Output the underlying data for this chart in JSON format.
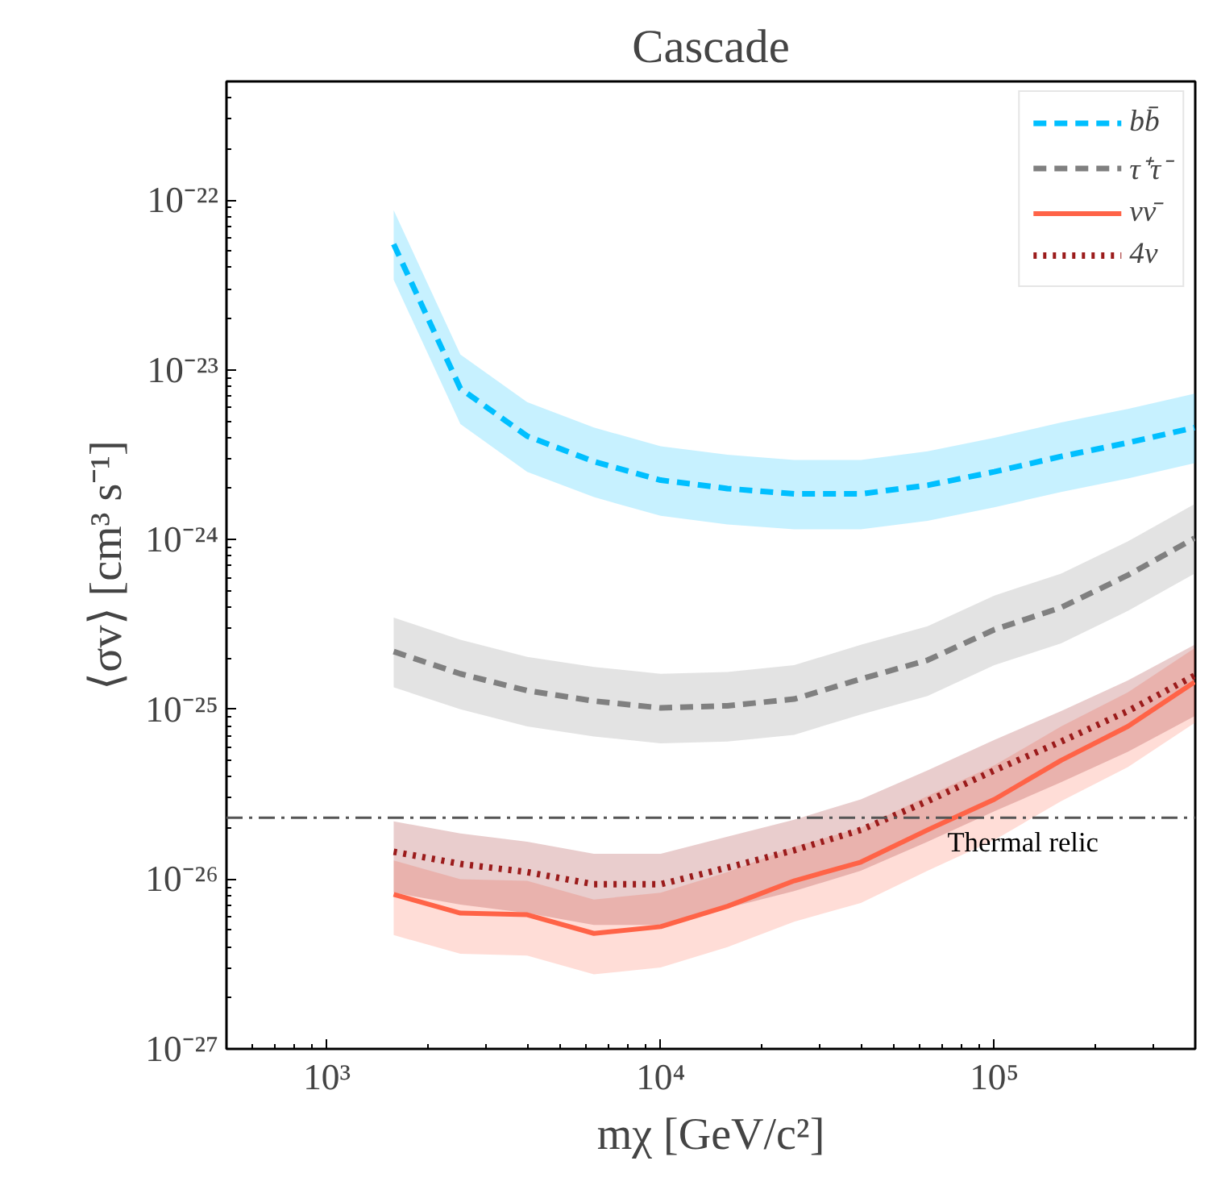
{
  "chart_data": {
    "type": "line",
    "title": "Cascade",
    "xlabel": "mχ [GeV/c²]",
    "ylabel": "⟨σv⟩ [cm³ s⁻¹]",
    "log": "xy",
    "grid": false,
    "legend": "top right",
    "xlim": [
      500,
      400000
    ],
    "ylim": [
      1e-27,
      5e-22
    ],
    "xticks": [
      {
        "value": 1000,
        "label": "10³"
      },
      {
        "value": 10000,
        "label": "10⁴"
      },
      {
        "value": 100000,
        "label": "10⁵"
      }
    ],
    "yticks": [
      {
        "value": 1e-27,
        "label": "10⁻²⁷"
      },
      {
        "value": 1e-26,
        "label": "10⁻²⁶"
      },
      {
        "value": 1e-25,
        "label": "10⁻²⁵"
      },
      {
        "value": 1e-24,
        "label": "10⁻²⁴"
      },
      {
        "value": 1e-23,
        "label": "10⁻²³"
      },
      {
        "value": 1e-22,
        "label": "10⁻²²"
      }
    ],
    "x": [
      1585,
      2512,
      3981,
      6310,
      10000,
      15850,
      25120,
      39810,
      63100,
      100000,
      158500,
      251200,
      398100
    ],
    "series": [
      {
        "name": "bb̄",
        "color": "#00bfff",
        "line_style": "dashed",
        "values": [
          5.5e-23,
          7.76e-24,
          4.07e-24,
          2.88e-24,
          2.24e-24,
          2e-24,
          1.86e-24,
          1.86e-24,
          2.09e-24,
          2.51e-24,
          3.09e-24,
          3.72e-24,
          4.57e-24
        ],
        "upper": [
          8.71e-23,
          1.23e-23,
          6.46e-24,
          4.57e-24,
          3.55e-24,
          3.16e-24,
          2.95e-24,
          2.95e-24,
          3.31e-24,
          3.98e-24,
          4.9e-24,
          5.89e-24,
          7.24e-24
        ],
        "lower": [
          3.39e-23,
          4.79e-24,
          2.51e-24,
          1.78e-24,
          1.38e-24,
          1.23e-24,
          1.15e-24,
          1.15e-24,
          1.29e-24,
          1.55e-24,
          1.91e-24,
          2.29e-24,
          2.82e-24
        ]
      },
      {
        "name": "τ⁺τ⁻",
        "color": "#808080",
        "line_style": "dashed",
        "values": [
          2.19e-25,
          1.62e-25,
          1.29e-25,
          1.12e-25,
          1.02e-25,
          1.05e-25,
          1.15e-25,
          1.51e-25,
          1.95e-25,
          2.95e-25,
          3.98e-25,
          6.17e-25,
          1.02e-24
        ],
        "upper": [
          3.47e-25,
          2.57e-25,
          2.04e-25,
          1.78e-25,
          1.62e-25,
          1.66e-25,
          1.82e-25,
          2.4e-25,
          3.09e-25,
          4.68e-25,
          6.31e-25,
          9.77e-25,
          1.62e-24
        ],
        "lower": [
          1.35e-25,
          1e-25,
          7.94e-26,
          6.92e-26,
          6.31e-26,
          6.46e-26,
          7.08e-26,
          9.33e-26,
          1.2e-25,
          1.82e-25,
          2.45e-25,
          3.8e-25,
          6.31e-25
        ]
      },
      {
        "name": "νν̄",
        "color": "#ff6347",
        "line_style": "solid",
        "values": [
          8.13e-27,
          6.31e-27,
          6.17e-27,
          4.79e-27,
          5.25e-27,
          6.92e-27,
          9.77e-27,
          1.26e-26,
          1.95e-26,
          2.95e-26,
          5.01e-26,
          7.94e-26,
          1.45e-25
        ],
        "upper": [
          1.29e-26,
          1e-26,
          9.77e-27,
          7.59e-27,
          8.32e-27,
          1.1e-26,
          1.55e-26,
          2e-26,
          3.09e-26,
          4.68e-26,
          7.94e-26,
          1.26e-25,
          2.29e-25
        ],
        "lower": [
          4.68e-27,
          3.63e-27,
          3.55e-27,
          2.75e-27,
          3.02e-27,
          3.98e-27,
          5.62e-27,
          7.24e-27,
          1.12e-26,
          1.7e-26,
          2.88e-26,
          4.57e-26,
          8.32e-26
        ]
      },
      {
        "name": "4ν",
        "color": "#9b1b1b",
        "line_style": "dotted",
        "values": [
          1.45e-26,
          1.23e-26,
          1.1e-26,
          9.33e-27,
          9.33e-27,
          1.17e-26,
          1.48e-26,
          1.95e-26,
          2.88e-26,
          4.37e-26,
          6.46e-26,
          9.77e-26,
          1.58e-25
        ],
        "upper": [
          2.19e-26,
          1.86e-26,
          1.66e-26,
          1.41e-26,
          1.41e-26,
          1.78e-26,
          2.24e-26,
          2.95e-26,
          4.37e-26,
          6.61e-26,
          9.77e-26,
          1.48e-25,
          2.4e-25
        ],
        "lower": [
          8.32e-27,
          7.08e-27,
          6.31e-27,
          5.37e-27,
          5.37e-27,
          6.76e-27,
          8.51e-27,
          1.12e-26,
          1.66e-26,
          2.51e-26,
          3.72e-26,
          5.62e-26,
          9.12e-26
        ]
      }
    ],
    "ref_lines": [
      {
        "axis": "y",
        "value": 2.3e-26,
        "label": "Thermal relic",
        "color": "#555555",
        "line_style": "dashdot"
      }
    ]
  }
}
